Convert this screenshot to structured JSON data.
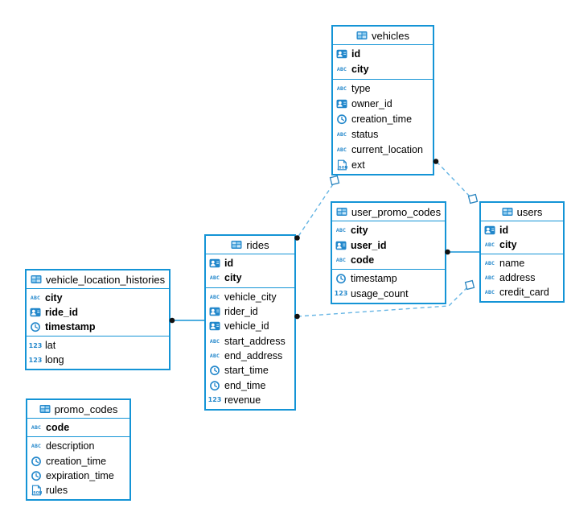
{
  "diagram": {
    "tables": [
      {
        "name": "vehicles",
        "icon": "table-icon",
        "primary_key_columns": [
          {
            "name": "id",
            "icon": "id-card-icon"
          },
          {
            "name": "city",
            "icon": "text-abc-icon"
          }
        ],
        "columns": [
          {
            "name": "type",
            "icon": "text-abc-icon"
          },
          {
            "name": "owner_id",
            "icon": "id-card-icon"
          },
          {
            "name": "creation_time",
            "icon": "clock-icon"
          },
          {
            "name": "status",
            "icon": "text-abc-icon"
          },
          {
            "name": "current_location",
            "icon": "text-abc-icon"
          },
          {
            "name": "ext",
            "icon": "json-icon"
          }
        ]
      },
      {
        "name": "user_promo_codes",
        "icon": "table-icon",
        "primary_key_columns": [
          {
            "name": "city",
            "icon": "text-abc-icon"
          },
          {
            "name": "user_id",
            "icon": "id-card-icon"
          },
          {
            "name": "code",
            "icon": "text-abc-icon"
          }
        ],
        "columns": [
          {
            "name": "timestamp",
            "icon": "clock-icon"
          },
          {
            "name": "usage_count",
            "icon": "number-123-icon"
          }
        ]
      },
      {
        "name": "users",
        "icon": "table-icon",
        "primary_key_columns": [
          {
            "name": "id",
            "icon": "id-card-icon"
          },
          {
            "name": "city",
            "icon": "text-abc-icon"
          }
        ],
        "columns": [
          {
            "name": "name",
            "icon": "text-abc-icon"
          },
          {
            "name": "address",
            "icon": "text-abc-icon"
          },
          {
            "name": "credit_card",
            "icon": "text-abc-icon"
          }
        ]
      },
      {
        "name": "rides",
        "icon": "table-icon",
        "primary_key_columns": [
          {
            "name": "id",
            "icon": "id-card-icon"
          },
          {
            "name": "city",
            "icon": "text-abc-icon"
          }
        ],
        "columns": [
          {
            "name": "vehicle_city",
            "icon": "text-abc-icon"
          },
          {
            "name": "rider_id",
            "icon": "id-card-icon"
          },
          {
            "name": "vehicle_id",
            "icon": "id-card-icon"
          },
          {
            "name": "start_address",
            "icon": "text-abc-icon"
          },
          {
            "name": "end_address",
            "icon": "text-abc-icon"
          },
          {
            "name": "start_time",
            "icon": "clock-icon"
          },
          {
            "name": "end_time",
            "icon": "clock-icon"
          },
          {
            "name": "revenue",
            "icon": "number-123-icon"
          }
        ]
      },
      {
        "name": "vehicle_location_histories",
        "icon": "table-icon",
        "primary_key_columns": [
          {
            "name": "city",
            "icon": "text-abc-icon"
          },
          {
            "name": "ride_id",
            "icon": "id-card-icon"
          },
          {
            "name": "timestamp",
            "icon": "clock-icon"
          }
        ],
        "columns": [
          {
            "name": "lat",
            "icon": "number-123-icon"
          },
          {
            "name": "long",
            "icon": "number-123-icon"
          }
        ]
      },
      {
        "name": "promo_codes",
        "icon": "table-icon",
        "primary_key_columns": [
          {
            "name": "code",
            "icon": "text-abc-icon"
          }
        ],
        "columns": [
          {
            "name": "description",
            "icon": "text-abc-icon"
          },
          {
            "name": "creation_time",
            "icon": "clock-icon"
          },
          {
            "name": "expiration_time",
            "icon": "clock-icon"
          },
          {
            "name": "rules",
            "icon": "json-icon"
          }
        ]
      }
    ],
    "relations": [
      {
        "from_table": "vehicle_location_histories",
        "to_table": "rides",
        "line_style": "solid"
      },
      {
        "from_table": "user_promo_codes",
        "to_table": "users",
        "line_style": "solid"
      },
      {
        "from_table": "rides",
        "to_table": "vehicles",
        "line_style": "dashed"
      },
      {
        "from_table": "vehicles",
        "to_table": "users",
        "line_style": "dashed"
      },
      {
        "from_table": "rides",
        "to_table": "users",
        "line_style": "dashed"
      }
    ],
    "colors": {
      "table_border": "#1494d6",
      "icon_blue": "#2287cb",
      "dashed_line": "#66b5e4",
      "solid_line": "#1494d6",
      "endpoint_dot": "#111111"
    }
  }
}
